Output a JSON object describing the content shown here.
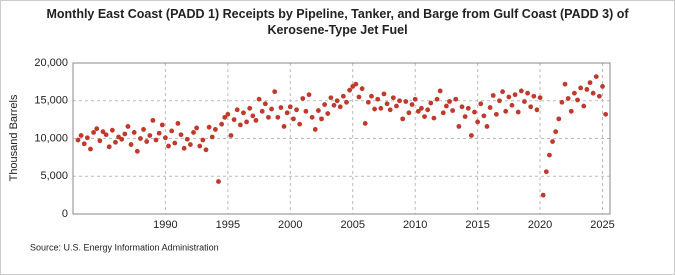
{
  "chart_data": {
    "type": "scatter",
    "title": "Monthly East Coast (PADD 1) Receipts by Pipeline, Tanker, and Barge from Gulf Coast (PADD 3) of Kerosene-Type Jet Fuel",
    "y_label": "Thousand Barrels",
    "source": "Source: U.S. Energy Information Administration",
    "color": "#c0392b",
    "grid": true,
    "xlim": [
      1982.6,
      2025.6
    ],
    "xticks": [
      1990,
      1995,
      2000,
      2005,
      2010,
      2015,
      2020,
      2025
    ],
    "ylim": [
      0,
      20000
    ],
    "yticks": [
      0,
      {
        "value": 5000,
        "label": "5,000"
      },
      {
        "value": 10000,
        "label": "10,000"
      },
      {
        "value": 15000,
        "label": "15,000"
      },
      {
        "value": 20000,
        "label": "20,000"
      }
    ],
    "x": [
      1983,
      1983.25,
      1983.5,
      1983.75,
      1984,
      1984.25,
      1984.5,
      1984.75,
      1985,
      1985.25,
      1985.5,
      1985.75,
      1986,
      1986.25,
      1986.5,
      1986.75,
      1987,
      1987.25,
      1987.5,
      1987.75,
      1988,
      1988.25,
      1988.5,
      1988.75,
      1989,
      1989.25,
      1989.5,
      1989.75,
      1990,
      1990.25,
      1990.5,
      1990.75,
      1991,
      1991.25,
      1991.5,
      1991.75,
      1992,
      1992.25,
      1992.5,
      1992.75,
      1993,
      1993.25,
      1993.5,
      1993.75,
      1994,
      1994.25,
      1994.5,
      1994.75,
      1995,
      1995.25,
      1995.5,
      1995.75,
      1996,
      1996.25,
      1996.5,
      1996.75,
      1997,
      1997.25,
      1997.5,
      1997.75,
      1998,
      1998.25,
      1998.5,
      1998.75,
      1999,
      1999.25,
      1999.5,
      1999.75,
      2000,
      2000.25,
      2000.5,
      2000.75,
      2001,
      2001.25,
      2001.5,
      2001.75,
      2002,
      2002.25,
      2002.5,
      2002.75,
      2003,
      2003.25,
      2003.5,
      2003.75,
      2004,
      2004.25,
      2004.5,
      2004.75,
      2005,
      2005.25,
      2005.5,
      2005.75,
      2006,
      2006.25,
      2006.5,
      2006.75,
      2007,
      2007.25,
      2007.5,
      2007.75,
      2008,
      2008.25,
      2008.5,
      2008.75,
      2009,
      2009.25,
      2009.5,
      2009.75,
      2010,
      2010.25,
      2010.5,
      2010.75,
      2011,
      2011.25,
      2011.5,
      2011.75,
      2012,
      2012.25,
      2012.5,
      2012.75,
      2013,
      2013.25,
      2013.5,
      2013.75,
      2014,
      2014.25,
      2014.5,
      2014.75,
      2015,
      2015.25,
      2015.5,
      2015.75,
      2016,
      2016.25,
      2016.5,
      2016.75,
      2017,
      2017.25,
      2017.5,
      2017.75,
      2018,
      2018.25,
      2018.5,
      2018.75,
      2019,
      2019.25,
      2019.5,
      2019.75,
      2020,
      2020.25,
      2020.5,
      2020.75,
      2021,
      2021.25,
      2021.5,
      2021.75,
      2022,
      2022.25,
      2022.5,
      2022.75,
      2023,
      2023.25,
      2023.5,
      2023.75,
      2024,
      2024.25,
      2024.5,
      2024.75,
      2025,
      2025.25
    ],
    "values": [
      9800,
      10400,
      9300,
      10100,
      8600,
      10800,
      11300,
      9700,
      10900,
      10500,
      8900,
      11100,
      9500,
      10200,
      9900,
      10600,
      11600,
      9200,
      10800,
      8300,
      10000,
      11200,
      9600,
      10400,
      12400,
      9800,
      10700,
      11800,
      10100,
      9000,
      11000,
      9400,
      12000,
      10500,
      8700,
      9900,
      9200,
      10800,
      11400,
      9000,
      9800,
      8500,
      11500,
      10200,
      11200,
      4300,
      11900,
      12800,
      13200,
      10400,
      12500,
      13800,
      11800,
      13400,
      12200,
      14000,
      13000,
      12400,
      15200,
      13600,
      14600,
      12800,
      13900,
      16200,
      12800,
      14100,
      11600,
      13400,
      14200,
      12600,
      13800,
      11900,
      15300,
      13600,
      15800,
      12800,
      11200,
      13700,
      12600,
      14500,
      13300,
      15400,
      14400,
      15000,
      14200,
      15600,
      14800,
      16400,
      16900,
      17200,
      15500,
      16600,
      12000,
      14800,
      15600,
      13900,
      15200,
      14000,
      15900,
      14600,
      13800,
      15400,
      14300,
      15000,
      12600,
      14900,
      13400,
      14500,
      15200,
      13600,
      14000,
      12900,
      13800,
      14700,
      12700,
      15200,
      16300,
      13400,
      14300,
      14900,
      13700,
      15200,
      11600,
      14200,
      12900,
      14000,
      10400,
      13500,
      12200,
      14600,
      13000,
      11600,
      14100,
      15700,
      13200,
      15000,
      16200,
      13600,
      15500,
      14400,
      15800,
      13500,
      16300,
      14900,
      16000,
      14200,
      15600,
      13800,
      15400,
      2500,
      5600,
      7800,
      9600,
      10900,
      12600,
      14800,
      17200,
      15300,
      13600,
      16000,
      15100,
      16700,
      14300,
      16500,
      17400,
      16000,
      18200,
      15600,
      16900,
      13200
    ]
  }
}
